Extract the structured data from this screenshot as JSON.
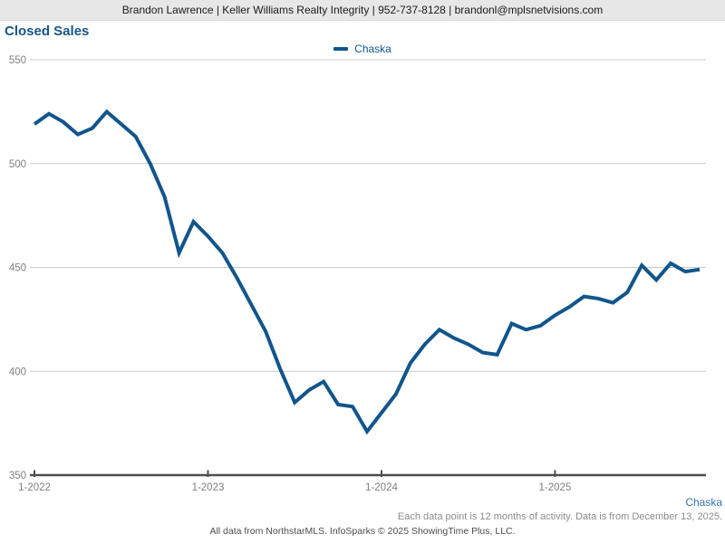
{
  "header": {
    "text": "Brandon Lawrence | Keller Williams Realty Integrity | 952-737-8128 | brandonl@mplsnetvisions.com"
  },
  "title": "Closed Sales",
  "legend": {
    "label": "Chaska"
  },
  "footer": {
    "series_label": "Chaska",
    "note": "Each data point is 12 months of activity. Data is from December 13, 2025.",
    "attribution": "All data from NorthstarMLS. InfoSparks © 2025 ShowingTime Plus, LLC."
  },
  "colors": {
    "line": "#11558C",
    "legend_text": "#11558C",
    "title_text": "#17548A",
    "footer_series_text": "#2E74B5",
    "grid": "#C9C9C9",
    "axis": "#4D4D4D",
    "tick_label": "#808080",
    "header_bg": "#E7E7E7"
  },
  "chart_data": {
    "type": "line",
    "title": "Closed Sales",
    "legend_position": "top-center",
    "grid": "horizontal",
    "ylim": [
      350,
      550
    ],
    "yticks": [
      350,
      400,
      450,
      500,
      550
    ],
    "x_tick_labels": [
      "1-2022",
      "1-2023",
      "1-2024",
      "1-2025"
    ],
    "x_tick_indices": [
      0,
      12,
      24,
      36
    ],
    "categories": [
      "1-2022",
      "2-2022",
      "3-2022",
      "4-2022",
      "5-2022",
      "6-2022",
      "7-2022",
      "8-2022",
      "9-2022",
      "10-2022",
      "11-2022",
      "12-2022",
      "1-2023",
      "2-2023",
      "3-2023",
      "4-2023",
      "5-2023",
      "6-2023",
      "7-2023",
      "8-2023",
      "9-2023",
      "10-2023",
      "11-2023",
      "12-2023",
      "1-2024",
      "2-2024",
      "3-2024",
      "4-2024",
      "5-2024",
      "6-2024",
      "7-2024",
      "8-2024",
      "9-2024",
      "10-2024",
      "11-2024",
      "12-2024",
      "1-2025",
      "2-2025",
      "3-2025",
      "4-2025",
      "5-2025",
      "6-2025",
      "7-2025",
      "8-2025",
      "9-2025",
      "10-2025",
      "11-2025"
    ],
    "series": [
      {
        "name": "Chaska",
        "color": "#11558C",
        "values": [
          519,
          524,
          520,
          514,
          517,
          525,
          519,
          513,
          500,
          484,
          457,
          472,
          465,
          457,
          445,
          432,
          419,
          401,
          385,
          391,
          395,
          384,
          383,
          371,
          380,
          389,
          404,
          413,
          420,
          416,
          413,
          409,
          408,
          423,
          420,
          422,
          427,
          431,
          436,
          435,
          433,
          438,
          451,
          444,
          452,
          448,
          449
        ]
      }
    ]
  }
}
